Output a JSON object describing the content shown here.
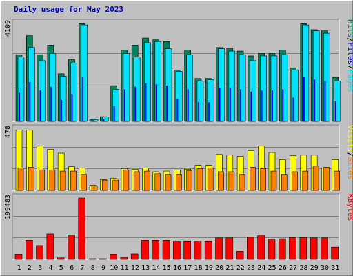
{
  "title": "Daily usage for May 2023",
  "colors": {
    "background": "#c0c0c0",
    "hits": "#00805c",
    "files": "#0000ff",
    "pages": "#00e0ff",
    "visits": "#ff8000",
    "sites": "#ffff00",
    "kbytes": "#ff0000",
    "title": "#0000cc"
  },
  "chart_data": [
    {
      "type": "bar",
      "panel": "top",
      "categories": [
        "1",
        "2",
        "3",
        "4",
        "5",
        "6",
        "7",
        "8",
        "9",
        "10",
        "11",
        "12",
        "13",
        "14",
        "15",
        "16",
        "17",
        "18",
        "19",
        "20",
        "21",
        "22",
        "23",
        "24",
        "25",
        "26",
        "27",
        "28",
        "29",
        "30",
        "31"
      ],
      "weekend_days": [
        "6",
        "7",
        "13",
        "14",
        "20",
        "21",
        "27",
        "28"
      ],
      "ymax_label": "4109",
      "ylim": [
        0,
        4109
      ],
      "legend": [
        {
          "label": "Hits",
          "color": "#00805c"
        },
        {
          "label": "/",
          "color": "#000000"
        },
        {
          "label": "Files",
          "color": "#0000ff"
        },
        {
          "label": "/",
          "color": "#000000"
        },
        {
          "label": "Pages",
          "color": "#00e0ff"
        }
      ],
      "series": [
        {
          "name": "Hits",
          "values": [
            2800,
            3600,
            2800,
            3200,
            2000,
            2600,
            4100,
            100,
            200,
            1500,
            3000,
            3200,
            3500,
            3450,
            3350,
            2150,
            3000,
            1800,
            1800,
            3100,
            3050,
            2950,
            2750,
            2850,
            2850,
            3000,
            2250,
            4100,
            3850,
            3800,
            1850
          ]
        },
        {
          "name": "Files",
          "values": [
            1200,
            1650,
            1300,
            1450,
            900,
            1150,
            1850,
            50,
            100,
            650,
            1350,
            1450,
            1600,
            1550,
            1500,
            950,
            1350,
            800,
            800,
            1400,
            1400,
            1350,
            1250,
            1300,
            1300,
            1350,
            1000,
            1850,
            1750,
            1700,
            850
          ]
        },
        {
          "name": "Pages",
          "values": [
            2700,
            3100,
            2550,
            2850,
            1900,
            2450,
            4050,
            80,
            180,
            1350,
            2850,
            2700,
            3300,
            3350,
            3050,
            2100,
            2800,
            1700,
            1750,
            3050,
            2950,
            2800,
            2550,
            2750,
            2750,
            2800,
            2150,
            4050,
            3800,
            3700,
            1700
          ]
        }
      ]
    },
    {
      "type": "bar",
      "panel": "middle",
      "categories": [
        "1",
        "2",
        "3",
        "4",
        "5",
        "6",
        "7",
        "8",
        "9",
        "10",
        "11",
        "12",
        "13",
        "14",
        "15",
        "16",
        "17",
        "18",
        "19",
        "20",
        "21",
        "22",
        "23",
        "24",
        "25",
        "26",
        "27",
        "28",
        "29",
        "30",
        "31"
      ],
      "ymax_label": "478",
      "ylim": [
        0,
        478
      ],
      "legend": [
        {
          "label": "Visits",
          "color": "#ffff00"
        },
        {
          "label": "/",
          "color": "#000000"
        },
        {
          "label": "Sites",
          "color": "#ff8000"
        }
      ],
      "series": [
        {
          "name": "Visits",
          "values": [
            470,
            470,
            345,
            320,
            290,
            185,
            175,
            40,
            85,
            95,
            170,
            165,
            175,
            145,
            150,
            160,
            165,
            195,
            195,
            280,
            275,
            265,
            310,
            345,
            295,
            240,
            270,
            275,
            275,
            175,
            240
          ]
        },
        {
          "name": "Sites",
          "values": [
            175,
            180,
            160,
            160,
            150,
            150,
            125,
            35,
            80,
            80,
            160,
            145,
            150,
            130,
            125,
            125,
            155,
            170,
            175,
            145,
            145,
            125,
            180,
            170,
            150,
            125,
            145,
            150,
            190,
            180,
            150
          ]
        }
      ]
    },
    {
      "type": "bar",
      "panel": "bottom",
      "categories": [
        "1",
        "2",
        "3",
        "4",
        "5",
        "6",
        "7",
        "8",
        "9",
        "10",
        "11",
        "12",
        "13",
        "14",
        "15",
        "16",
        "17",
        "18",
        "19",
        "20",
        "21",
        "22",
        "23",
        "24",
        "25",
        "26",
        "27",
        "28",
        "29",
        "30",
        "31"
      ],
      "ymax_label": "199483",
      "ylim": [
        0,
        199483
      ],
      "legend": [
        {
          "label": "KBytes",
          "color": "#ff0000"
        }
      ],
      "series": [
        {
          "name": "KBytes",
          "values": [
            17000,
            62000,
            45000,
            83000,
            5000,
            79000,
            199483,
            2000,
            2000,
            17000,
            7000,
            18000,
            62000,
            62000,
            62000,
            59000,
            60000,
            59000,
            60000,
            70000,
            70000,
            26000,
            72000,
            77000,
            66000,
            67000,
            71000,
            71000,
            70000,
            70000,
            40000
          ]
        }
      ]
    }
  ]
}
